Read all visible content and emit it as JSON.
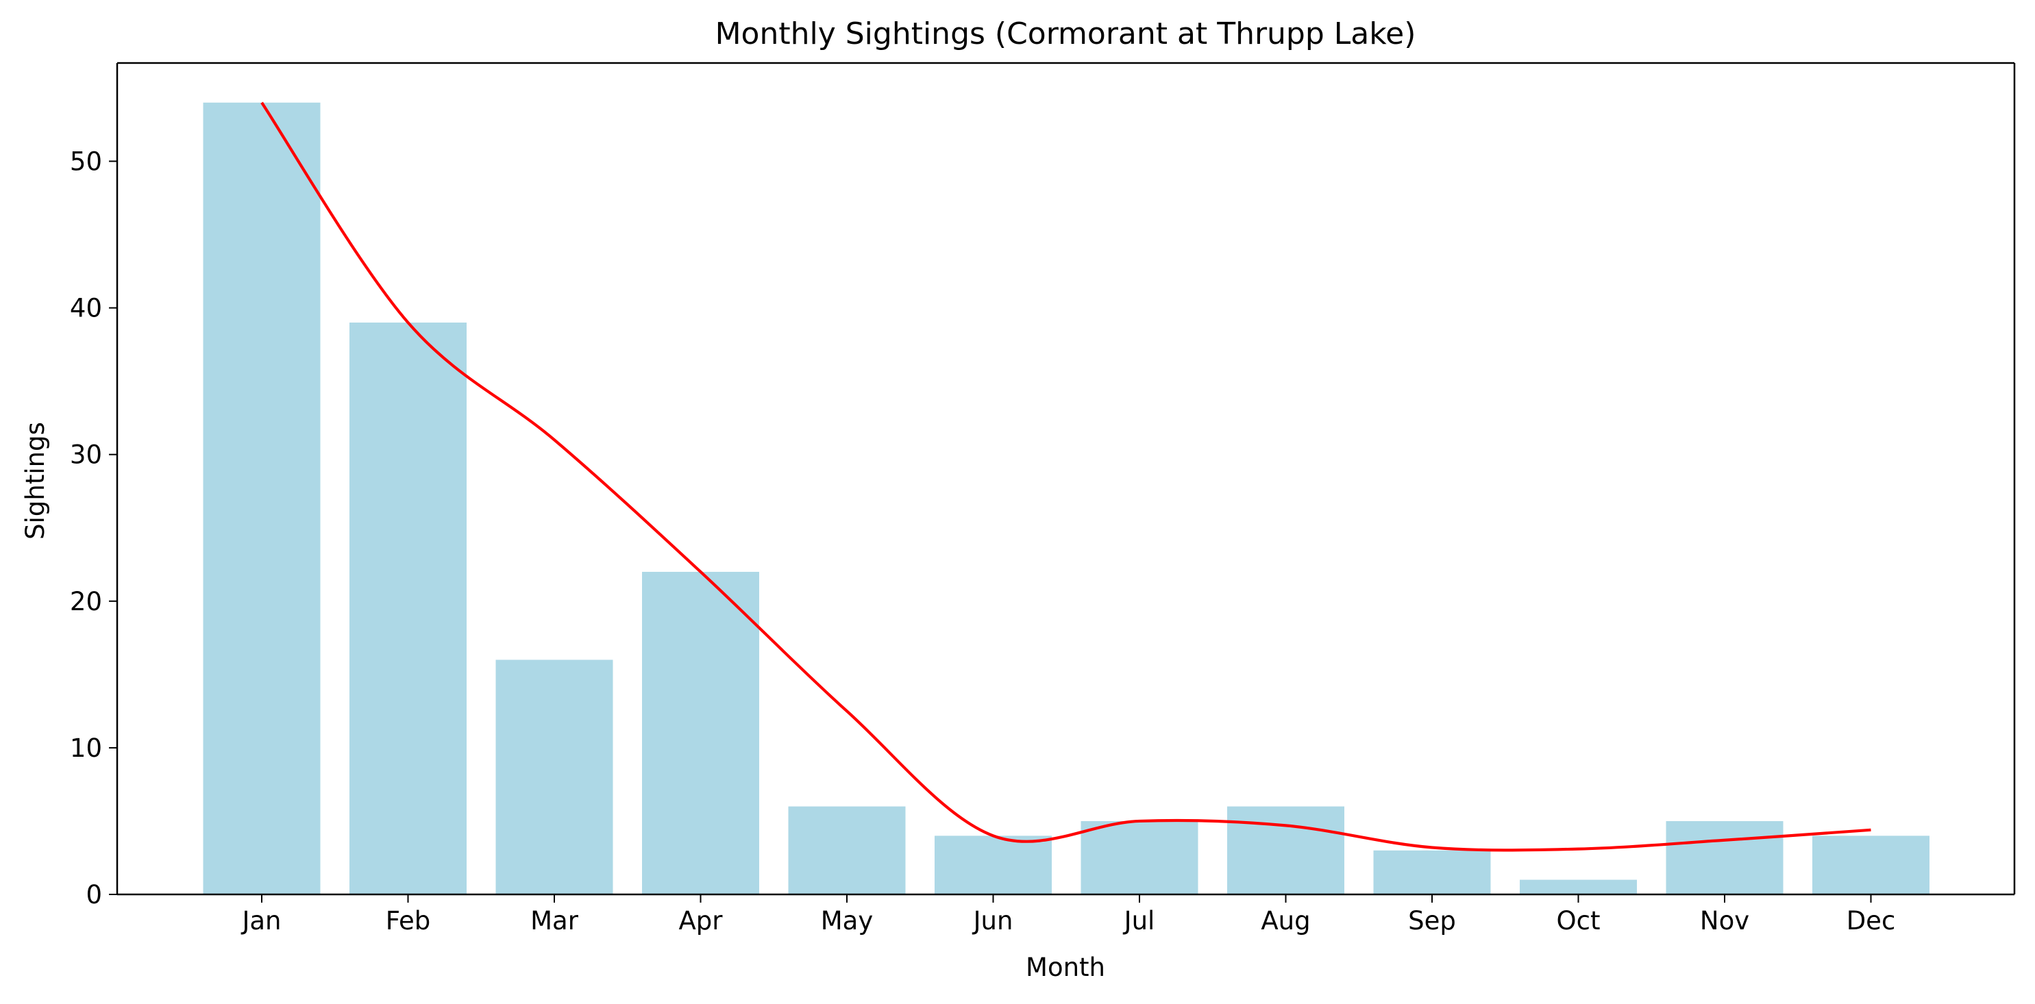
{
  "chart_data": {
    "type": "bar",
    "title": "Monthly Sightings (Cormorant at Thrupp Lake)",
    "xlabel": "Month",
    "ylabel": "Sightings",
    "categories": [
      "Jan",
      "Feb",
      "Mar",
      "Apr",
      "May",
      "Jun",
      "Jul",
      "Aug",
      "Sep",
      "Oct",
      "Nov",
      "Dec"
    ],
    "series": [
      {
        "type": "bar",
        "values": [
          54,
          39,
          16,
          22,
          6,
          4,
          5,
          6,
          3,
          1,
          5,
          4
        ],
        "color": "#add8e6"
      },
      {
        "type": "line",
        "values": [
          54,
          39,
          31,
          22,
          12.5,
          4,
          5,
          4.7,
          3.2,
          3.1,
          3.7,
          4.4
        ],
        "color": "#ff0000"
      }
    ],
    "ylim": [
      0,
      56.7
    ],
    "yticks": [
      0,
      10,
      20,
      30,
      40,
      50
    ],
    "grid": false,
    "legend": "none"
  }
}
